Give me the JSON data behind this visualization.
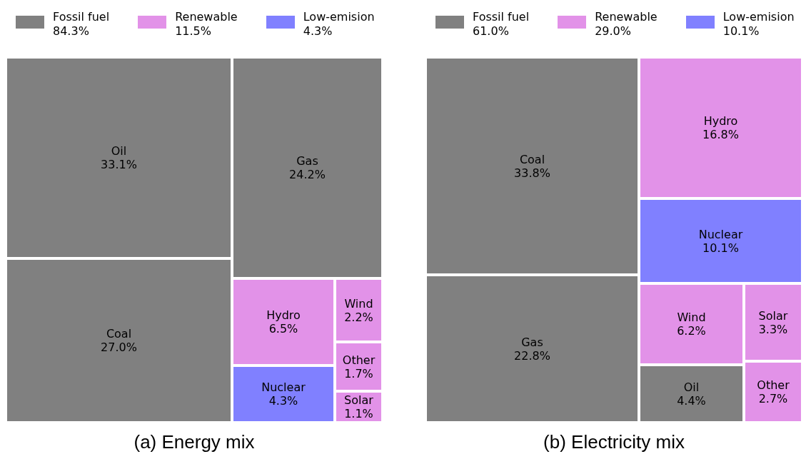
{
  "chart_data": [
    {
      "type": "other",
      "title": "(a) Energy mix",
      "legend": "top",
      "categories": [
        "Oil",
        "Coal",
        "Gas",
        "Hydro",
        "Nuclear",
        "Wind",
        "Other",
        "Solar"
      ],
      "series": [
        {
          "name": "Fossil fuel",
          "color": "#808080",
          "values": [
            33.1,
            27.0,
            24.2,
            null,
            null,
            null,
            null,
            null
          ],
          "value_labels": [
            "33.1%",
            "27.0%",
            "24.2%",
            null,
            null,
            null,
            null,
            null
          ]
        },
        {
          "name": "Renewable",
          "color": "#e292e8",
          "values": [
            null,
            null,
            null,
            6.5,
            null,
            2.2,
            1.7,
            1.1
          ],
          "value_labels": [
            null,
            null,
            null,
            "6.5%",
            null,
            "2.2%",
            "1.7%",
            "1.1%"
          ]
        },
        {
          "name": "Low-emision",
          "color": "#8080ff",
          "values": [
            null,
            null,
            null,
            null,
            4.3,
            null,
            null,
            null
          ],
          "value_labels": [
            null,
            null,
            null,
            null,
            "4.3%",
            null,
            null,
            null
          ]
        }
      ],
      "annotations": [
        "84.3%",
        "11.5%",
        "4.3%"
      ]
    },
    {
      "type": "other",
      "title": "(b) Electricity mix",
      "legend": "top",
      "categories": [
        "Coal",
        "Gas",
        "Hydro",
        "Nuclear",
        "Wind",
        "Oil",
        "Solar",
        "Other"
      ],
      "series": [
        {
          "name": "Fossil fuel",
          "color": "#808080",
          "values": [
            33.8,
            22.8,
            null,
            null,
            null,
            4.4,
            null,
            null
          ],
          "value_labels": [
            "33.8%",
            "22.8%",
            null,
            null,
            null,
            "4.4%",
            null,
            null
          ]
        },
        {
          "name": "Renewable",
          "color": "#e292e8",
          "values": [
            null,
            null,
            16.8,
            null,
            6.2,
            null,
            3.3,
            2.7
          ],
          "value_labels": [
            null,
            null,
            "16.8%",
            null,
            "6.2%",
            null,
            "3.3%",
            "2.7%"
          ]
        },
        {
          "name": "Low-emision",
          "color": "#8080ff",
          "values": [
            null,
            null,
            null,
            10.1,
            null,
            null,
            null,
            null
          ],
          "value_labels": [
            null,
            null,
            null,
            "10.1%",
            null,
            null,
            null,
            null
          ]
        }
      ],
      "annotations": [
        "61.0%",
        "29.0%",
        "10.1%"
      ]
    }
  ]
}
